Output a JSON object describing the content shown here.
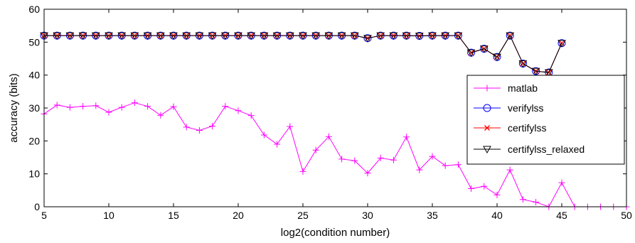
{
  "chart_data": {
    "type": "line",
    "xlabel": "log2(condition number)",
    "ylabel": "accuracy (bits)",
    "xlim": [
      5,
      50
    ],
    "ylim": [
      0,
      60
    ],
    "xticks": [
      5,
      10,
      15,
      20,
      25,
      30,
      35,
      40,
      45,
      50
    ],
    "yticks": [
      0,
      10,
      20,
      30,
      40,
      50,
      60
    ],
    "legend_position": "right",
    "series": [
      {
        "name": "matlab",
        "color": "#ff00ff",
        "marker": "plus",
        "x": [
          5,
          6,
          7,
          8,
          9,
          10,
          11,
          12,
          13,
          14,
          15,
          16,
          17,
          18,
          19,
          20,
          21,
          22,
          23,
          24,
          25,
          26,
          27,
          28,
          29,
          30,
          31,
          32,
          33,
          34,
          35,
          36,
          37,
          38,
          39,
          40,
          41,
          42,
          43,
          44,
          45,
          46,
          47,
          48,
          49,
          50
        ],
        "y": [
          28.2,
          30.9,
          30.2,
          30.5,
          30.7,
          28.7,
          30.2,
          31.6,
          30.5,
          27.8,
          30.4,
          24.2,
          23.2,
          24.5,
          30.5,
          29.2,
          27.7,
          21.8,
          19.0,
          24.4,
          10.7,
          17.2,
          21.3,
          14.5,
          14.0,
          10.2,
          14.8,
          14.2,
          21.2,
          11.2,
          15.3,
          12.5,
          12.8,
          5.5,
          6.2,
          3.6,
          11.2,
          2.2,
          1.4,
          0.0,
          7.3,
          0.0,
          0.0,
          0.0,
          0.0,
          0.0
        ]
      },
      {
        "name": "verifylss",
        "color": "#0000ff",
        "marker": "circle",
        "x": [
          5,
          6,
          7,
          8,
          9,
          10,
          11,
          12,
          13,
          14,
          15,
          16,
          17,
          18,
          19,
          20,
          21,
          22,
          23,
          24,
          25,
          26,
          27,
          28,
          29,
          30,
          31,
          32,
          33,
          34,
          35,
          36,
          37,
          38,
          39,
          40,
          41,
          42,
          43,
          44,
          45
        ],
        "y": [
          52,
          52,
          52,
          52,
          52,
          52,
          52,
          52,
          52,
          52,
          52,
          52,
          52,
          52,
          52,
          52,
          52,
          52,
          52,
          52,
          52,
          52,
          52,
          52,
          52,
          51.2,
          52,
          52,
          52,
          51.9,
          52,
          52,
          52,
          46.8,
          48,
          45.5,
          52,
          43.5,
          41.2,
          40.8,
          49.7
        ]
      },
      {
        "name": "certifylss",
        "color": "#ff0000",
        "marker": "x",
        "x": [
          5,
          6,
          7,
          8,
          9,
          10,
          11,
          12,
          13,
          14,
          15,
          16,
          17,
          18,
          19,
          20,
          21,
          22,
          23,
          24,
          25,
          26,
          27,
          28,
          29,
          30,
          31,
          32,
          33,
          34,
          35,
          36,
          37,
          38,
          39,
          40,
          41,
          42,
          43,
          44,
          45
        ],
        "y": [
          52,
          52,
          52,
          52,
          52,
          52,
          52,
          52,
          52,
          52,
          52,
          52,
          52,
          52,
          52,
          52,
          52,
          52,
          52,
          52,
          52,
          52,
          52,
          52,
          52,
          51.2,
          52,
          52,
          52,
          51.9,
          52,
          52,
          52,
          46.8,
          48,
          45.5,
          52,
          43.5,
          41.2,
          40.8,
          49.7
        ]
      },
      {
        "name": "certifylss_relaxed",
        "color": "#000000",
        "marker": "triangle-down",
        "x": [
          5,
          6,
          7,
          8,
          9,
          10,
          11,
          12,
          13,
          14,
          15,
          16,
          17,
          18,
          19,
          20,
          21,
          22,
          23,
          24,
          25,
          26,
          27,
          28,
          29,
          30,
          31,
          32,
          33,
          34,
          35,
          36,
          37,
          38,
          39,
          40,
          41,
          42,
          43,
          44,
          45
        ],
        "y": [
          52,
          52,
          52,
          52,
          52,
          52,
          52,
          52,
          52,
          52,
          52,
          52,
          52,
          52,
          52,
          52,
          52,
          52,
          52,
          52,
          52,
          52,
          52,
          52,
          52,
          51.2,
          52,
          52,
          52,
          51.9,
          52,
          52,
          52,
          46.8,
          48,
          45.5,
          52,
          43.5,
          41.2,
          40.8,
          49.7
        ]
      }
    ]
  }
}
